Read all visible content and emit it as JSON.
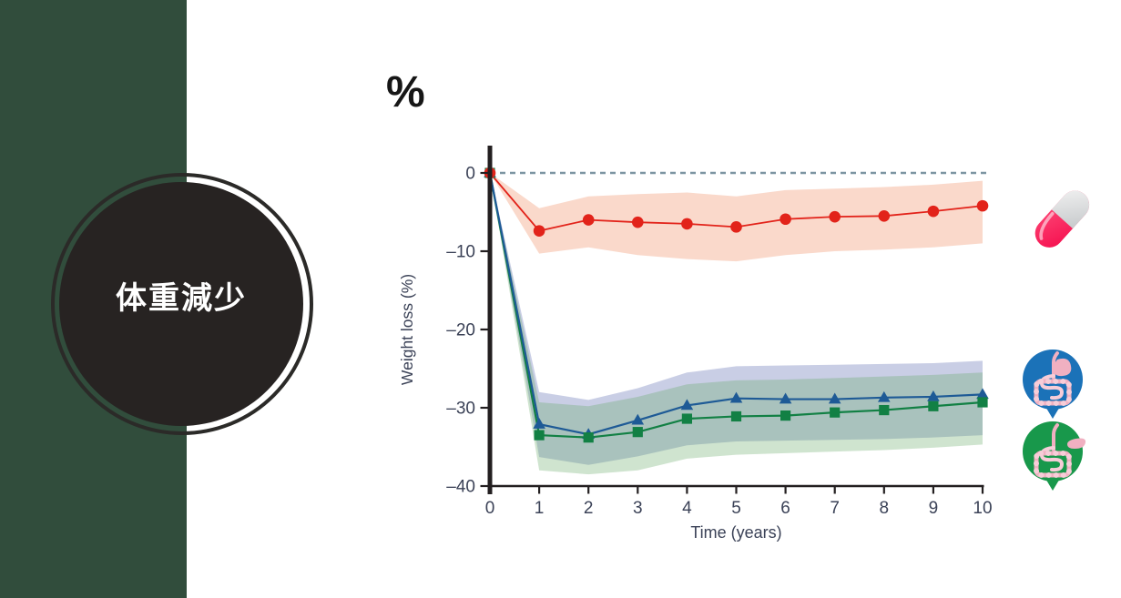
{
  "percent_label": "%",
  "badge": {
    "label": "体重減少"
  },
  "theme": {
    "sidebar_green": "#314d3c",
    "badge_bg": "#272322",
    "badge_ring": "#2b2a28",
    "pill_pink": "#f5104f",
    "pill_pink_light": "#ff4f7c",
    "pill_white": "#f2f2f2",
    "pill_gray": "#c7cacc",
    "icon_blue": "#1b72b8",
    "icon_green": "#18984b",
    "organ_pink": "#f0b0c1",
    "organ_pink_light": "#f7cdd8"
  },
  "chart_data": {
    "type": "line",
    "title": "",
    "xlabel": "Time (years)",
    "ylabel": "Weight loss (%)",
    "xlim": [
      0,
      10
    ],
    "ylim": [
      -40,
      0
    ],
    "grid": false,
    "legend": "icon pictograms at right: pill = medication, blue = gastric bypass, green = sleeve gastrectomy",
    "x": [
      0,
      1,
      2,
      3,
      4,
      5,
      6,
      7,
      8,
      9,
      10
    ],
    "x_ticks": [
      "0",
      "1",
      "2",
      "3",
      "4",
      "5",
      "6",
      "7",
      "8",
      "9",
      "10"
    ],
    "y_ticks": [
      {
        "v": 0,
        "label": "0"
      },
      {
        "v": -10,
        "label": "–10"
      },
      {
        "v": -20,
        "label": "–20"
      },
      {
        "v": -30,
        "label": "–30"
      },
      {
        "v": -40,
        "label": "–40"
      }
    ],
    "zero_line": {
      "y": 0,
      "style": "dashed",
      "color": "#7c95a2"
    },
    "axis_color": "#231f20",
    "label_color": "#3b4257",
    "series": [
      {
        "name": "medication",
        "marker": "circle",
        "line_color": "#e2231a",
        "band_fill": "rgba(240,146,107,0.35)",
        "values": [
          0,
          -7.4,
          -6.0,
          -6.3,
          -6.5,
          -6.9,
          -5.9,
          -5.6,
          -5.5,
          -4.9,
          -4.2
        ],
        "band_upper": [
          0,
          -4.5,
          -3.0,
          -2.7,
          -2.5,
          -3.0,
          -2.2,
          -2.0,
          -1.8,
          -1.5,
          -1.0
        ],
        "band_lower": [
          0,
          -10.3,
          -9.5,
          -10.5,
          -11.0,
          -11.3,
          -10.5,
          -10.0,
          -9.8,
          -9.5,
          -9.0
        ]
      },
      {
        "name": "gastric-bypass",
        "marker": "triangle",
        "line_color": "#1e5a96",
        "band_fill": "rgba(100,115,180,0.35)",
        "values": [
          0,
          -32.1,
          -33.4,
          -31.6,
          -29.7,
          -28.8,
          -28.9,
          -28.9,
          -28.7,
          -28.6,
          -28.3
        ],
        "band_upper": [
          0,
          -28.0,
          -29.0,
          -27.5,
          -25.5,
          -24.7,
          -24.6,
          -24.5,
          -24.4,
          -24.3,
          -24.0
        ],
        "band_lower": [
          0,
          -36.3,
          -37.3,
          -36.2,
          -34.8,
          -34.3,
          -34.2,
          -34.1,
          -34.0,
          -33.8,
          -33.5
        ]
      },
      {
        "name": "sleeve-gastrectomy",
        "marker": "square",
        "line_color": "#128044",
        "band_fill": "rgba(95,165,95,0.30)",
        "values": [
          0,
          -33.5,
          -33.8,
          -33.1,
          -31.4,
          -31.1,
          -31.0,
          -30.6,
          -30.3,
          -29.8,
          -29.3
        ],
        "band_upper": [
          0,
          -29.3,
          -29.8,
          -28.6,
          -27.0,
          -26.5,
          -26.4,
          -26.2,
          -26.0,
          -25.8,
          -25.5
        ],
        "band_lower": [
          0,
          -38.0,
          -38.5,
          -38.0,
          -36.5,
          -36.0,
          -35.8,
          -35.6,
          -35.4,
          -35.1,
          -34.7
        ]
      }
    ]
  }
}
